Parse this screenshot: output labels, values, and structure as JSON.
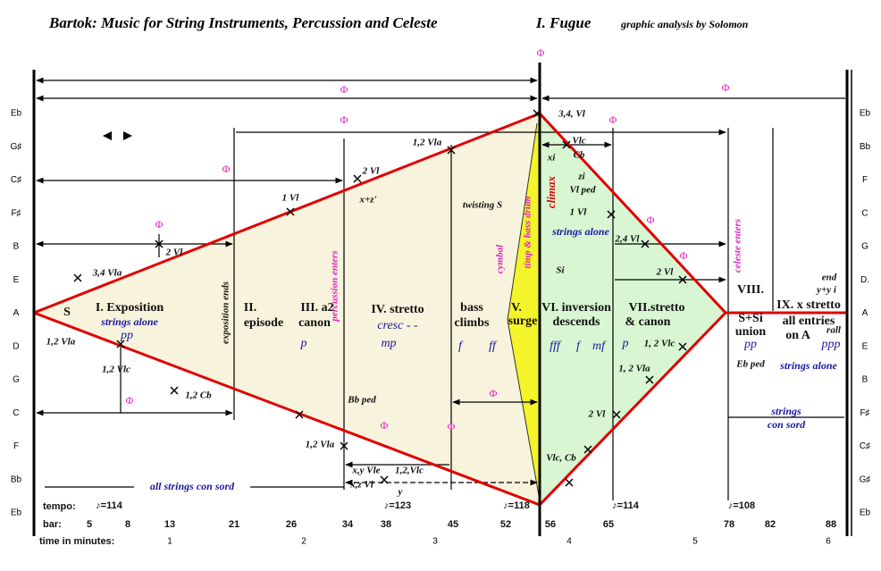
{
  "header": {
    "title": "Bartok: Music for String Instruments, Percussion and Celeste",
    "movement": "I. Fugue",
    "credit": "graphic analysis by Solomon"
  },
  "pitches_left": [
    "Eb",
    "G♯",
    "C♯",
    "F♯",
    "B",
    "E",
    "A",
    "D",
    "G",
    "C",
    "F",
    "Bb",
    "Eb"
  ],
  "pitches_right": [
    "Eb",
    "Bb",
    "F",
    "C",
    "G",
    "D.",
    "A",
    "E",
    "B",
    "F♯",
    "C♯",
    "G♯",
    "Eb"
  ],
  "labels": [
    "S",
    "I. Exposition",
    "strings alone",
    "pp",
    "1,2 Vla",
    "3,4 Vla",
    "2 Vl",
    "1,2 Vlc",
    "1,2 Cb",
    "exposition ends",
    "II.",
    "episode",
    "III. a2",
    "canon",
    "p",
    "1 Vl",
    "2 Vl",
    "x+z'",
    "percussion enters",
    "IV. stretto",
    "cresc - -",
    "mp",
    "1,2 Vla",
    "twisting S",
    "bass",
    "climbs",
    "f",
    "ff",
    "cymbal",
    "timp & bass drum",
    "V.",
    "surge",
    "Bb ped",
    "1,2 Vla",
    "x,y Vle",
    "x,z Vl",
    "1,2,Vlc",
    "y",
    "all strings con sord",
    "3,4, Vl",
    "Vlc",
    "Cb",
    "xi",
    "zi",
    "Vl ped",
    "1 Vl",
    "climax",
    "strings alone",
    "Si",
    "VI. inversion",
    "descends",
    "fff",
    "f",
    "mf",
    "p",
    "VII.stretto",
    "& canon",
    "1, 2 Vlc",
    "1, 2 Vla",
    "2 Vl",
    "Vlc, Cb",
    "2,4 Vl",
    "2 Vl",
    "celeste enters",
    "VIII.",
    "S+Si",
    "union",
    "pp",
    "Eb ped",
    "end",
    "y+y i",
    "IX. x stretto",
    "rall",
    "all entries",
    "on A",
    "ppp",
    "strings alone",
    "strings",
    "con sord"
  ],
  "phi_symbols": [
    "Φ",
    "Φ",
    "Φ",
    "Φ",
    "Φ",
    "Φ",
    "Φ",
    "Φ",
    "Φ",
    "Φ",
    "Φ",
    "Φ",
    "Φ"
  ],
  "footer": {
    "tempo_label": "tempo:",
    "bar_label": "bar:",
    "time_label": "time in minutes:",
    "tempi": [
      "♪=114",
      "♪=123",
      "♪=118",
      "♪=114",
      "♪=108"
    ],
    "bars": [
      "5",
      "8",
      "13",
      "21",
      "26",
      "34",
      "38",
      "45",
      "52",
      "56",
      "65",
      "78",
      "82",
      "88"
    ],
    "minutes": [
      "1",
      "2",
      "3",
      "4",
      "5",
      "6"
    ]
  }
}
